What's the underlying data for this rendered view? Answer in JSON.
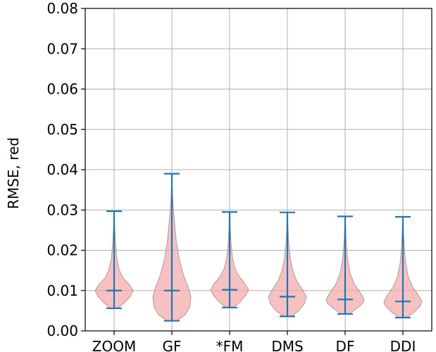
{
  "chart_data": {
    "type": "violin",
    "ylabel": "RMSE, red",
    "ylim": [
      0.0,
      0.08
    ],
    "yticks": [
      {
        "value": 0.0,
        "label": "0.00"
      },
      {
        "value": 0.01,
        "label": "0.01"
      },
      {
        "value": 0.02,
        "label": "0.02"
      },
      {
        "value": 0.03,
        "label": "0.03"
      },
      {
        "value": 0.04,
        "label": "0.04"
      },
      {
        "value": 0.05,
        "label": "0.05"
      },
      {
        "value": 0.06,
        "label": "0.06"
      },
      {
        "value": 0.07,
        "label": "0.07"
      },
      {
        "value": 0.08,
        "label": "0.08"
      }
    ],
    "grid": true,
    "categories": [
      "ZOOM",
      "GF",
      "*FM",
      "DMS",
      "DF",
      "DDI"
    ],
    "violins": [
      {
        "category": "ZOOM",
        "min": 0.0056,
        "median": 0.01,
        "max": 0.0297,
        "density": [
          [
            0.0056,
            0.2
          ],
          [
            0.007,
            0.55
          ],
          [
            0.0085,
            0.85
          ],
          [
            0.01,
            1.0
          ],
          [
            0.0115,
            0.8
          ],
          [
            0.013,
            0.5
          ],
          [
            0.015,
            0.28
          ],
          [
            0.018,
            0.14
          ],
          [
            0.022,
            0.07
          ],
          [
            0.026,
            0.03
          ],
          [
            0.0297,
            0.01
          ]
        ]
      },
      {
        "category": "GF",
        "min": 0.0025,
        "median": 0.01,
        "max": 0.039,
        "density": [
          [
            0.0025,
            0.25
          ],
          [
            0.004,
            0.7
          ],
          [
            0.006,
            0.95
          ],
          [
            0.0085,
            1.0
          ],
          [
            0.011,
            0.85
          ],
          [
            0.014,
            0.6
          ],
          [
            0.018,
            0.38
          ],
          [
            0.022,
            0.24
          ],
          [
            0.027,
            0.14
          ],
          [
            0.031,
            0.07
          ],
          [
            0.0345,
            0.03
          ],
          [
            0.039,
            0.0
          ]
        ]
      },
      {
        "category": "*FM",
        "min": 0.0058,
        "median": 0.0102,
        "max": 0.0295,
        "density": [
          [
            0.0058,
            0.2
          ],
          [
            0.0072,
            0.55
          ],
          [
            0.0088,
            0.85
          ],
          [
            0.0102,
            1.0
          ],
          [
            0.0118,
            0.8
          ],
          [
            0.0135,
            0.5
          ],
          [
            0.0155,
            0.28
          ],
          [
            0.0185,
            0.14
          ],
          [
            0.022,
            0.07
          ],
          [
            0.026,
            0.03
          ],
          [
            0.0295,
            0.01
          ]
        ]
      },
      {
        "category": "DMS",
        "min": 0.0036,
        "median": 0.0085,
        "max": 0.0294,
        "density": [
          [
            0.0036,
            0.2
          ],
          [
            0.005,
            0.6
          ],
          [
            0.0068,
            0.9
          ],
          [
            0.0085,
            1.0
          ],
          [
            0.0105,
            0.75
          ],
          [
            0.0125,
            0.48
          ],
          [
            0.015,
            0.28
          ],
          [
            0.018,
            0.15
          ],
          [
            0.022,
            0.07
          ],
          [
            0.026,
            0.03
          ],
          [
            0.0294,
            0.01
          ]
        ]
      },
      {
        "category": "DF",
        "min": 0.0042,
        "median": 0.0078,
        "max": 0.0284,
        "density": [
          [
            0.0042,
            0.2
          ],
          [
            0.0055,
            0.6
          ],
          [
            0.0068,
            0.92
          ],
          [
            0.0078,
            1.0
          ],
          [
            0.0095,
            0.8
          ],
          [
            0.0115,
            0.5
          ],
          [
            0.014,
            0.28
          ],
          [
            0.0175,
            0.14
          ],
          [
            0.021,
            0.07
          ],
          [
            0.025,
            0.03
          ],
          [
            0.0284,
            0.01
          ]
        ]
      },
      {
        "category": "DDI",
        "min": 0.0033,
        "median": 0.0073,
        "max": 0.0283,
        "density": [
          [
            0.0033,
            0.2
          ],
          [
            0.0047,
            0.6
          ],
          [
            0.0062,
            0.92
          ],
          [
            0.0073,
            1.0
          ],
          [
            0.009,
            0.8
          ],
          [
            0.011,
            0.5
          ],
          [
            0.0135,
            0.28
          ],
          [
            0.017,
            0.14
          ],
          [
            0.021,
            0.07
          ],
          [
            0.025,
            0.03
          ],
          [
            0.0283,
            0.01
          ]
        ]
      }
    ],
    "colors": {
      "body": "#f4a6a6",
      "stats": "#1f77b4"
    }
  }
}
